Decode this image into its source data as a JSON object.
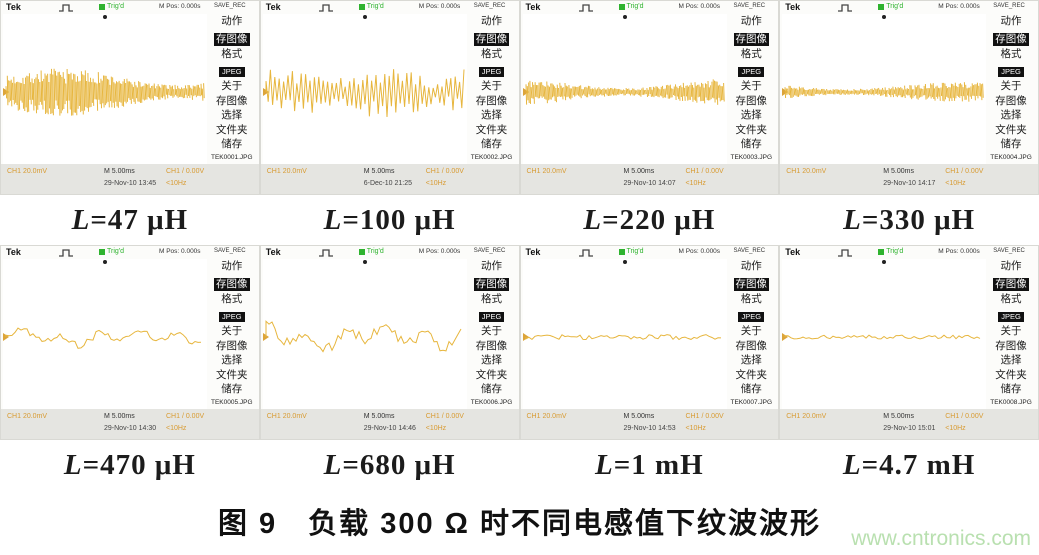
{
  "scope_common": {
    "brand": "Tek",
    "trig_label": "Trig'd",
    "m_pos": "M Pos: 0.000s",
    "save_rec": "SAVE_REC",
    "menu": [
      "动作",
      "存图像",
      "格式",
      "JPEG",
      "关于",
      "存图像",
      "选择",
      "文件夹",
      "储存"
    ],
    "ch_scale": "CH1 20.0mV",
    "timebase": "M 5.00ms",
    "trig_source": "CH1 / 0.00V",
    "trig_freq": "<10Hz",
    "trace_color": "#e7b63e",
    "trig_green": "#2fb32f",
    "status_orange": "#d89b32"
  },
  "panels": [
    {
      "label": "L=47 μH",
      "file": "TEK0001.JPG",
      "datetime": "29-Nov-10 13:45",
      "wave": {
        "style": "dense",
        "amplitude": 24
      }
    },
    {
      "label": "L=100 μH",
      "file": "TEK0002.JPG",
      "datetime": "6-Dec-10 21:25",
      "wave": {
        "style": "spiky",
        "amplitude": 28
      }
    },
    {
      "label": "L=220 μH",
      "file": "TEK0003.JPG",
      "datetime": "29-Nov-10 14:07",
      "wave": {
        "style": "dense",
        "amplitude": 14
      }
    },
    {
      "label": "L=330 μH",
      "file": "TEK0004.JPG",
      "datetime": "29-Nov-10 14:17",
      "wave": {
        "style": "dense",
        "amplitude": 10
      }
    },
    {
      "label": "L=470 μH",
      "file": "TEK0005.JPG",
      "datetime": "29-Nov-10 14:30",
      "wave": {
        "style": "wave",
        "amplitude": 8
      }
    },
    {
      "label": "L=680 μH",
      "file": "TEK0006.JPG",
      "datetime": "29-Nov-10 14:46",
      "wave": {
        "style": "wave",
        "amplitude": 12
      }
    },
    {
      "label": "L=1 mH",
      "file": "TEK0007.JPG",
      "datetime": "29-Nov-10 14:53",
      "wave": {
        "style": "flat",
        "amplitude": 2.5
      }
    },
    {
      "label": "L=4.7 mH",
      "file": "TEK0008.JPG",
      "datetime": "29-Nov-10 15:01",
      "wave": {
        "style": "flat",
        "amplitude": 2
      }
    }
  ],
  "caption": "图 9　负载 300 Ω 时不同电感值下纹波波形",
  "watermark": "www.cntronics.com"
}
